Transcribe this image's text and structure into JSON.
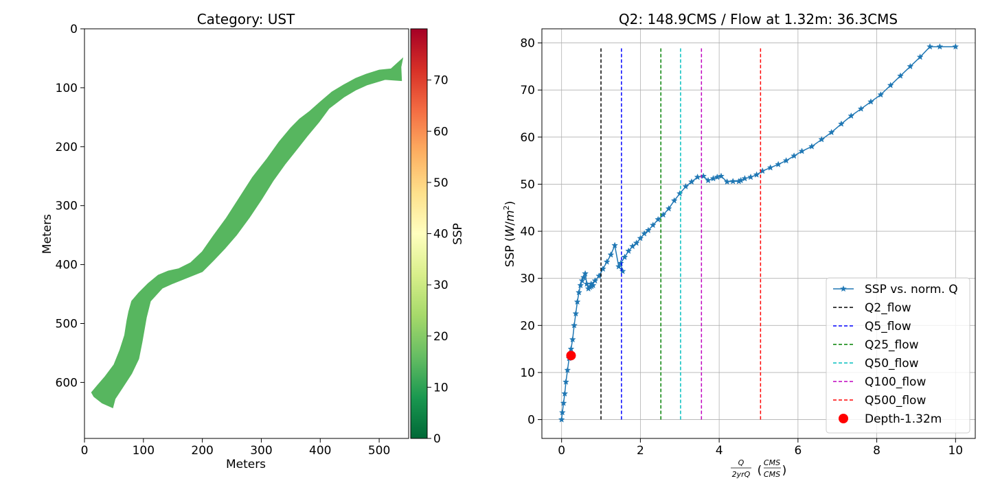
{
  "chart_data": [
    {
      "type": "heatmap",
      "title": "Category: UST",
      "xlabel": "Meters",
      "ylabel": "Meters",
      "xlim": [
        0,
        550
      ],
      "ylim": [
        0,
        695
      ],
      "y_inverted": true,
      "xticks": [
        "0",
        "100",
        "200",
        "300",
        "400",
        "500"
      ],
      "yticks": [
        "0",
        "100",
        "200",
        "300",
        "400",
        "500",
        "600"
      ],
      "colorbar": {
        "label": "SSP",
        "range": [
          0,
          80
        ],
        "ticks": [
          "0",
          "10",
          "20",
          "30",
          "40",
          "50",
          "60",
          "70"
        ],
        "colormap": "RdYlGn_r"
      },
      "fill_color": "#57b65f",
      "channel_polygon": [
        [
          12,
          617
        ],
        [
          22,
          605
        ],
        [
          35,
          590
        ],
        [
          50,
          570
        ],
        [
          60,
          545
        ],
        [
          68,
          520
        ],
        [
          72,
          495
        ],
        [
          75,
          480
        ],
        [
          80,
          462
        ],
        [
          92,
          448
        ],
        [
          108,
          432
        ],
        [
          125,
          418
        ],
        [
          142,
          411
        ],
        [
          160,
          407
        ],
        [
          180,
          397
        ],
        [
          200,
          378
        ],
        [
          218,
          352
        ],
        [
          240,
          322
        ],
        [
          262,
          288
        ],
        [
          285,
          252
        ],
        [
          310,
          220
        ],
        [
          330,
          192
        ],
        [
          350,
          168
        ],
        [
          365,
          153
        ],
        [
          382,
          140
        ],
        [
          400,
          124
        ],
        [
          420,
          107
        ],
        [
          440,
          95
        ],
        [
          460,
          84
        ],
        [
          478,
          77
        ],
        [
          500,
          70
        ],
        [
          520,
          68
        ],
        [
          540,
          50
        ],
        [
          537,
          65
        ],
        [
          538,
          88
        ],
        [
          510,
          86
        ],
        [
          480,
          95
        ],
        [
          460,
          104
        ],
        [
          440,
          116
        ],
        [
          415,
          135
        ],
        [
          398,
          158
        ],
        [
          378,
          182
        ],
        [
          360,
          205
        ],
        [
          340,
          230
        ],
        [
          320,
          258
        ],
        [
          300,
          290
        ],
        [
          280,
          320
        ],
        [
          258,
          350
        ],
        [
          238,
          373
        ],
        [
          220,
          392
        ],
        [
          200,
          412
        ],
        [
          175,
          422
        ],
        [
          150,
          432
        ],
        [
          132,
          440
        ],
        [
          112,
          462
        ],
        [
          105,
          490
        ],
        [
          98,
          530
        ],
        [
          92,
          560
        ],
        [
          80,
          585
        ],
        [
          65,
          608
        ],
        [
          52,
          628
        ],
        [
          48,
          643
        ],
        [
          30,
          635
        ],
        [
          16,
          624
        ]
      ]
    },
    {
      "type": "line",
      "title": "Q2: 148.9CMS / Flow at 1.32m: 36.3CMS",
      "xlabel": "Q / 2yrQ (CMS / CMS)",
      "ylabel": "SSP (W/m²)",
      "xlim": [
        -0.5,
        10.5
      ],
      "ylim": [
        -4,
        83
      ],
      "xticks": [
        "0",
        "2",
        "4",
        "6",
        "8",
        "10"
      ],
      "yticks": [
        "0",
        "10",
        "20",
        "30",
        "40",
        "50",
        "60",
        "70",
        "80"
      ],
      "grid": true,
      "legend_position": "lower-right",
      "series": [
        {
          "name": "SSP vs. norm. Q",
          "color": "#1f77b4",
          "marker": "star",
          "x": [
            0,
            0.02,
            0.05,
            0.08,
            0.11,
            0.15,
            0.19,
            0.24,
            0.28,
            0.32,
            0.36,
            0.4,
            0.44,
            0.48,
            0.52,
            0.56,
            0.6,
            0.64,
            0.68,
            0.72,
            0.76,
            0.8,
            0.75,
            0.85,
            0.95,
            1.05,
            1.15,
            1.25,
            1.35,
            1.45,
            1.55,
            1.5,
            1.6,
            1.7,
            1.8,
            1.9,
            2.0,
            2.1,
            2.2,
            2.32,
            2.45,
            2.58,
            2.72,
            2.86,
            3.0,
            3.15,
            3.3,
            3.45,
            3.6,
            3.72,
            3.85,
            3.95,
            4.05,
            4.2,
            4.35,
            4.5,
            4.55,
            4.65,
            4.8,
            4.95,
            5.1,
            5.3,
            5.5,
            5.7,
            5.9,
            6.1,
            6.35,
            6.6,
            6.85,
            7.1,
            7.35,
            7.6,
            7.85,
            8.1,
            8.35,
            8.6,
            8.85,
            9.1,
            9.35,
            9.6,
            10.0
          ],
          "y": [
            0,
            1.5,
            3.5,
            5.5,
            8,
            10.5,
            13,
            15,
            17,
            20,
            22.5,
            25,
            27,
            28.5,
            29.5,
            30.2,
            31,
            28.8,
            27.8,
            28.1,
            28.3,
            28.5,
            28.8,
            29.5,
            30.5,
            32,
            33.5,
            35,
            37,
            32.5,
            31.5,
            33.2,
            34.5,
            35.8,
            36.8,
            37.5,
            38.5,
            39.5,
            40.2,
            41.3,
            42.5,
            43.5,
            44.8,
            46.5,
            48,
            49.5,
            50.5,
            51.5,
            51.7,
            50.8,
            51.2,
            51.5,
            51.7,
            50.5,
            50.6,
            50.6,
            50.8,
            51.2,
            51.5,
            52,
            52.8,
            53.5,
            54.2,
            55,
            56,
            57,
            58,
            59.5,
            61,
            62.8,
            64.5,
            66,
            67.5,
            69,
            71,
            73,
            75,
            77,
            79.2,
            79.2,
            79.2
          ]
        },
        {
          "name": "Q2_flow",
          "color": "#000000",
          "style": "dashed",
          "x": 1.0,
          "y_range": [
            0,
            79.2
          ]
        },
        {
          "name": "Q5_flow",
          "color": "#0000ff",
          "style": "dashed",
          "x": 1.52,
          "y_range": [
            0,
            79.2
          ]
        },
        {
          "name": "Q25_flow",
          "color": "#008000",
          "style": "dashed",
          "x": 2.52,
          "y_range": [
            0,
            79.2
          ]
        },
        {
          "name": "Q50_flow",
          "color": "#00bfbf",
          "style": "dashed",
          "x": 3.02,
          "y_range": [
            0,
            79.2
          ]
        },
        {
          "name": "Q100_flow",
          "color": "#bf00bf",
          "style": "dashed",
          "x": 3.55,
          "y_range": [
            0,
            79.2
          ]
        },
        {
          "name": "Q500_flow",
          "color": "#ff0000",
          "style": "dashed",
          "x": 5.05,
          "y_range": [
            0,
            79.2
          ]
        },
        {
          "name": "Depth-1.32m",
          "color": "#ff0000",
          "marker": "circle",
          "x": 0.24,
          "y": 13.6
        }
      ],
      "legend": [
        "SSP vs. norm. Q",
        "Q2_flow",
        "Q5_flow",
        "Q25_flow",
        "Q50_flow",
        "Q100_flow",
        "Q500_flow",
        "Depth-1.32m"
      ]
    }
  ]
}
